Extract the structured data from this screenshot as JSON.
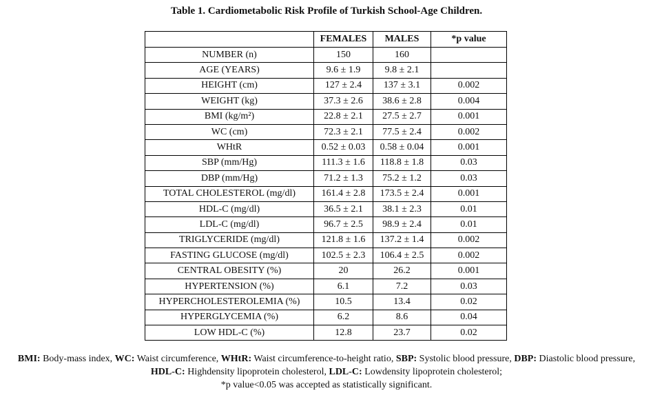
{
  "title": "Table 1. Cardiometabolic Risk Profile of Turkish School-Age Children.",
  "table": {
    "headers": [
      "",
      "FEMALES",
      "MALES",
      "*p value"
    ],
    "rows": [
      [
        "NUMBER (n)",
        "150",
        "160",
        ""
      ],
      [
        "AGE (YEARS)",
        "9.6 ± 1.9",
        "9.8 ± 2.1",
        ""
      ],
      [
        "HEIGHT (cm)",
        "127 ± 2.4",
        "137 ± 3.1",
        "0.002"
      ],
      [
        "WEIGHT (kg)",
        "37.3 ± 2.6",
        "38.6 ± 2.8",
        "0.004"
      ],
      [
        "BMI (kg/m²)",
        "22.8 ± 2.1",
        "27.5 ± 2.7",
        "0.001"
      ],
      [
        "WC (cm)",
        "72.3 ± 2.1",
        "77.5 ± 2.4",
        "0.002"
      ],
      [
        "WHtR",
        "0.52 ± 0.03",
        "0.58 ± 0.04",
        "0.001"
      ],
      [
        "SBP (mm/Hg)",
        "111.3 ± 1.6",
        "118.8 ± 1.8",
        "0.03"
      ],
      [
        "DBP (mm/Hg)",
        "71.2 ± 1.3",
        "75.2 ± 1.2",
        "0.03"
      ],
      [
        "TOTAL CHOLESTEROL (mg/dl)",
        "161.4 ± 2.8",
        "173.5 ± 2.4",
        "0.001"
      ],
      [
        "HDL-C (mg/dl)",
        "36.5 ± 2.1",
        "38.1 ± 2.3",
        "0.01"
      ],
      [
        "LDL-C (mg/dl)",
        "96.7 ± 2.5",
        "98.9 ± 2.4",
        "0.01"
      ],
      [
        "TRIGLYCERIDE (mg/dl)",
        "121.8 ± 1.6",
        "137.2 ± 1.4",
        "0.002"
      ],
      [
        "FASTING GLUCOSE (mg/dl)",
        "102.5 ± 2.3",
        "106.4 ± 2.5",
        "0.002"
      ],
      [
        "CENTRAL OBESITY (%)",
        "20",
        "26.2",
        "0.001"
      ],
      [
        "HYPERTENSION (%)",
        "6.1",
        "7.2",
        "0.03"
      ],
      [
        "HYPERCHOLESTEROLEMIA (%)",
        "10.5",
        "13.4",
        "0.02"
      ],
      [
        "HYPERGLYCEMIA (%)",
        "6.2",
        "8.6",
        "0.04"
      ],
      [
        "LOW HDL-C (%)",
        "12.8",
        "23.7",
        "0.02"
      ]
    ]
  },
  "footnotes": {
    "line1": [
      {
        "abbr": "BMI:",
        "text": " Body-mass index, "
      },
      {
        "abbr": "WC:",
        "text": " Waist circumference, "
      },
      {
        "abbr": "WHtR:",
        "text": " Waist circumference-to-height ratio, "
      },
      {
        "abbr": "SBP:",
        "text": " Systolic blood pressure, "
      },
      {
        "abbr": "DBP:",
        "text": " Diastolic blood pressure,"
      }
    ],
    "line2": [
      {
        "abbr": "HDL-C:",
        "text": " Highdensity lipoprotein cholesterol, "
      },
      {
        "abbr": "LDL-C:",
        "text": " Lowdensity lipoprotein cholesterol;"
      }
    ],
    "line3": "*p value<0.05 was accepted as statistically significant."
  }
}
